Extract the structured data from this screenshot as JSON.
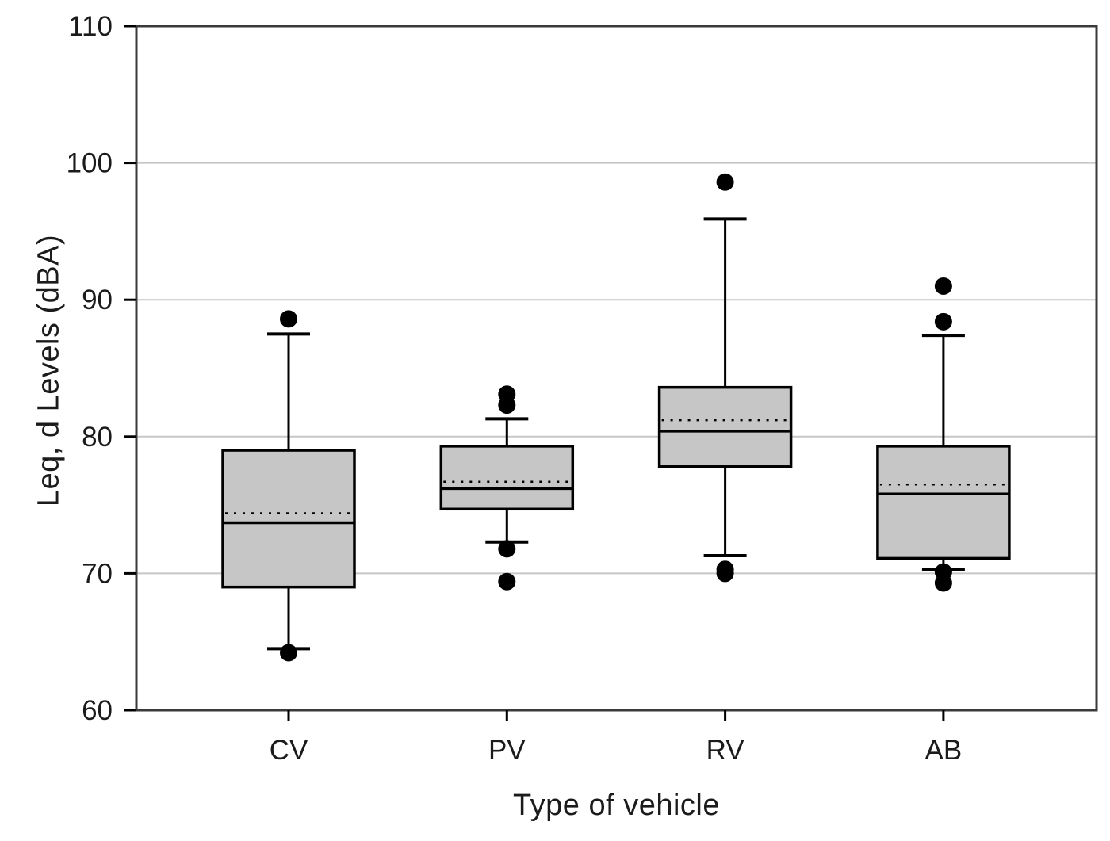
{
  "chart_data": {
    "type": "boxplot",
    "title": "",
    "xlabel": "Type of vehicle",
    "ylabel": "Leq, d Levels (dBA)",
    "ylim": [
      60,
      110
    ],
    "yticks": [
      60,
      70,
      80,
      90,
      100,
      110
    ],
    "grid": "horizontal-gridlines",
    "gridlines_at": [
      70,
      80,
      90,
      100
    ],
    "legend": "none",
    "categories": [
      "CV",
      "PV",
      "RV",
      "AB"
    ],
    "series": [
      {
        "category": "CV",
        "q1": 69.0,
        "median": 73.7,
        "mean": 74.4,
        "q3": 79.0,
        "whisker_low": 64.5,
        "whisker_high": 87.5,
        "outliers_high": [
          88.6
        ],
        "outliers_low": [
          64.2
        ]
      },
      {
        "category": "PV",
        "q1": 74.7,
        "median": 76.2,
        "mean": 76.7,
        "q3": 79.3,
        "whisker_low": 72.3,
        "whisker_high": 81.3,
        "outliers_high": [
          83.1,
          82.3
        ],
        "outliers_low": [
          71.8,
          69.4
        ]
      },
      {
        "category": "RV",
        "q1": 77.8,
        "median": 80.4,
        "mean": 81.2,
        "q3": 83.6,
        "whisker_low": 71.3,
        "whisker_high": 95.9,
        "outliers_high": [
          98.6
        ],
        "outliers_low": [
          70.3,
          70.0
        ]
      },
      {
        "category": "AB",
        "q1": 71.1,
        "median": 75.8,
        "mean": 76.5,
        "q3": 79.3,
        "whisker_low": 70.3,
        "whisker_high": 87.4,
        "outliers_high": [
          91.0,
          88.4
        ],
        "outliers_low": [
          70.1,
          69.3
        ]
      }
    ],
    "style": {
      "box_fill": "#c6c6c6",
      "box_border": "#000000",
      "median_line": "solid-black",
      "mean_line": "dotted-black",
      "outlier_marker": "filled-black-circle",
      "grid_color": "#c7c7c7",
      "frame_color": "#3a3a3a",
      "text_color": "#1b1b1b",
      "background": "#ffffff"
    }
  }
}
